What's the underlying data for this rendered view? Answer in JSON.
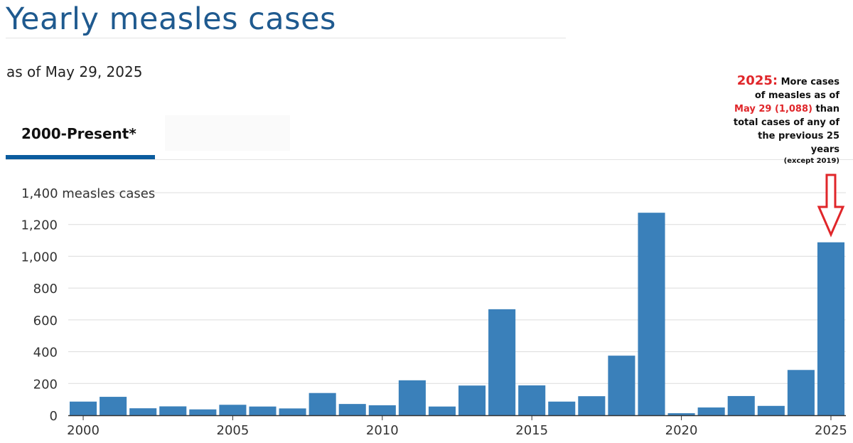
{
  "header": {
    "title": "Yearly measles cases",
    "subtitle": "as of May 29, 2025"
  },
  "tabs": [
    {
      "label": "2000-Present*",
      "active": true
    }
  ],
  "annotation": {
    "year": "2025:",
    "line1": "More cases",
    "line2": "of measles as of",
    "line3_red": "May 29 (1,088)",
    "line3_rest": "than",
    "line4": "total cases of any of",
    "line5": "the previous 25",
    "line6": "years",
    "line7": "(except 2019)",
    "color": "#e0262a"
  },
  "chart_data": {
    "type": "bar",
    "title": "Yearly measles cases",
    "subtitle": "as of May 29, 2025",
    "ylabel": "measles cases",
    "x": [
      2000,
      2001,
      2002,
      2003,
      2004,
      2005,
      2006,
      2007,
      2008,
      2009,
      2010,
      2011,
      2012,
      2013,
      2014,
      2015,
      2016,
      2017,
      2018,
      2019,
      2020,
      2021,
      2022,
      2023,
      2024,
      2025
    ],
    "values": [
      86,
      116,
      44,
      56,
      37,
      66,
      55,
      43,
      140,
      71,
      63,
      220,
      55,
      187,
      667,
      188,
      86,
      120,
      375,
      1274,
      13,
      49,
      121,
      59,
      285,
      1088
    ],
    "ylim": [
      0,
      1400
    ],
    "yticks": [
      0,
      200,
      400,
      600,
      800,
      1000,
      1200,
      1400
    ],
    "ytick_labels": [
      "0",
      "200",
      "400",
      "600",
      "800",
      "1,000",
      "1,200",
      "1,400 measles cases"
    ],
    "xticks": [
      2000,
      2005,
      2010,
      2015,
      2020,
      2025
    ],
    "xtick_labels": [
      "2000",
      "2005",
      "2010",
      "2015",
      "2020",
      "2025"
    ],
    "bar_color": "#3a80ba",
    "grid": true
  }
}
